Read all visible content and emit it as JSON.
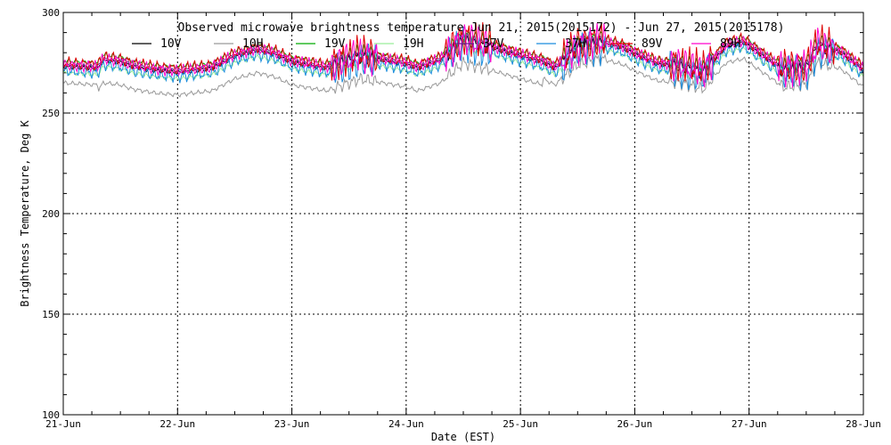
{
  "chart_data": {
    "type": "line",
    "title": "Observed microwave brightness temperature Jun 21, 2015(2015172) - Jun 27, 2015(2015178)",
    "xlabel": "Date (EST)",
    "ylabel": "Brightness Temperature, Deg K",
    "x_ticks": [
      "21-Jun",
      "22-Jun",
      "23-Jun",
      "24-Jun",
      "25-Jun",
      "26-Jun",
      "27-Jun",
      "28-Jun"
    ],
    "y_ticks": [
      "100",
      "150",
      "200",
      "250",
      "300"
    ],
    "xlim": [
      0,
      7
    ],
    "ylim": [
      100,
      300
    ],
    "grid": "dotted",
    "x_unit": "days since 21-Jun 00:00 EST",
    "series": [
      {
        "name": "10V",
        "color": "#000000",
        "offset": 0,
        "key_x": [
          0,
          0.3,
          0.35,
          0.5,
          0.6,
          0.8,
          1.0,
          1.3,
          1.5,
          1.7,
          1.85,
          2.0,
          2.3,
          2.5,
          2.6,
          2.8,
          3.0,
          3.1,
          3.3,
          3.5,
          3.7,
          4.0,
          4.2,
          4.3,
          4.5,
          4.7,
          4.9,
          5.0,
          5.2,
          5.4,
          5.6,
          5.8,
          5.95,
          6.1,
          6.3,
          6.5,
          6.6,
          6.8,
          7.0
        ],
        "key_y": [
          273,
          272,
          276,
          275,
          273,
          271,
          270,
          272,
          278,
          281,
          279,
          275,
          272,
          276,
          278,
          276,
          274,
          272,
          276,
          286,
          283,
          278,
          275,
          272,
          282,
          285,
          282,
          279,
          274,
          273,
          270,
          283,
          285,
          279,
          271,
          272,
          283,
          280,
          271
        ]
      },
      {
        "name": "10H",
        "color": "#999999",
        "offset": -8
      },
      {
        "name": "19V",
        "color": "#00aa00",
        "offset": 3
      },
      {
        "name": "19H",
        "color": "#99ee99",
        "offset": -3
      },
      {
        "name": "37V",
        "color": "#6b1f8f",
        "offset": 1
      },
      {
        "name": "37H",
        "color": "#1a8cdd",
        "offset": -2
      },
      {
        "name": "89V",
        "color": "#dd0000",
        "offset": 2
      },
      {
        "name": "89H",
        "color": "#ff00cc",
        "offset": 1
      }
    ]
  }
}
